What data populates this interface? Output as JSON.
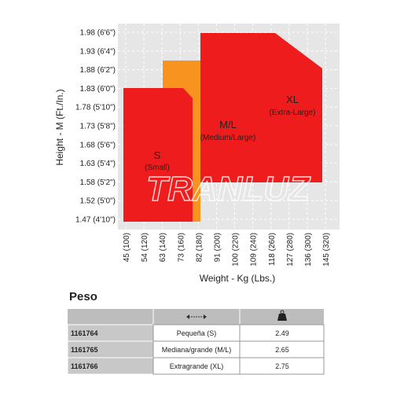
{
  "chart_data": {
    "type": "size-region",
    "x_label": "Weight - Kg (Lbs.)",
    "y_label": "Height - M (Ft./In.)",
    "categories": [
      "45 (100)",
      "54 (120)",
      "63 (140)",
      "73 (160)",
      "82 (180)",
      "91 (200)",
      "100 (220)",
      "109 (240)",
      "118 (260)",
      "127 (280)",
      "136 (300)",
      "145 (320)"
    ],
    "y_categories": [
      "1.98 (6'6\")",
      "1.93 (6'4\")",
      "1.88 (6'2\")",
      "1.83 (6'0\")",
      "1.78 (5'10\")",
      "1.73 (5'8\")",
      "1.68 (5'6\")",
      "1.63 (5'4\")",
      "1.58 (5'2\")",
      "1.52 (5'0\")",
      "1.47 (4'10\")"
    ],
    "regions": [
      {
        "name": "S",
        "subtitle": "(Small)",
        "color": "#ee1c1c"
      },
      {
        "name": "M/L",
        "subtitle": "(Medium/Large)",
        "color": "#f7931e"
      },
      {
        "name": "XL",
        "subtitle": "(Extra-Large)",
        "color": "#ee1c1c"
      }
    ],
    "watermark": "TRANLUZ",
    "grid": true
  },
  "table": {
    "title": "Peso",
    "rows": [
      [
        "1161764",
        "Pequeña (S)",
        "2.49"
      ],
      [
        "1161765",
        "Mediana/grande (M/L)",
        "2.65"
      ],
      [
        "1161766",
        "Extragrande (XL)",
        "2.75"
      ]
    ]
  }
}
